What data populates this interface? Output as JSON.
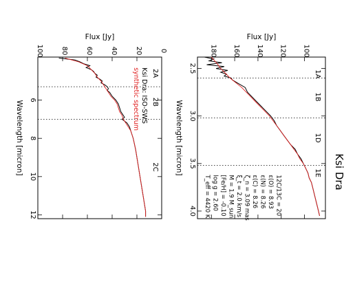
{
  "chart_data": [
    {
      "type": "line",
      "panel": "right",
      "title": "Ksi Dra",
      "xlabel": "Wavelength [micron]",
      "ylabel": "Flux [Jy]",
      "xlim": [
        2.38,
        4.08
      ],
      "ylim": [
        82,
        192
      ],
      "xticks": [
        2.5,
        3.0,
        3.5,
        4.0
      ],
      "yticks": [
        100,
        120,
        140,
        160,
        180
      ],
      "band_boundaries": [
        2.6,
        3.02,
        3.52
      ],
      "bands": [
        {
          "label": "1A",
          "x": 2.56
        },
        {
          "label": "1B",
          "x": 2.8
        },
        {
          "label": "1D",
          "x": 3.23
        },
        {
          "label": "1E",
          "x": 3.6
        }
      ],
      "parameters": [
        "T_eff = 4420 K",
        "log g = 2.60",
        "[Fe/H] = -0.10",
        "M = 1.9 M_sun",
        "ξ_t = 2.0 km/s",
        "ζ_n = 3.09 mas",
        "ε(C) = 8.26",
        "ε(N) = 8.26",
        "ε(O) = 8.93",
        "12C/13C = 20"
      ],
      "series": [
        {
          "name": "",
          "color": "#000000",
          "x": [
            2.38,
            2.4,
            2.42,
            2.44,
            2.46,
            2.48,
            2.5,
            2.52,
            2.54,
            2.56,
            2.58,
            2.6,
            2.62,
            2.65,
            2.7,
            2.75,
            2.8,
            2.85,
            2.9,
            2.95,
            3.0,
            3.05,
            3.1,
            3.15,
            3.2,
            3.25,
            3.3,
            3.35,
            3.4,
            3.45,
            3.5,
            3.55,
            3.6,
            3.65,
            3.7,
            3.75,
            3.8,
            3.85,
            3.9,
            3.95,
            4.0,
            4.05
          ],
          "y": [
            186,
            178,
            182,
            171,
            184,
            169,
            176,
            166,
            172,
            167,
            169,
            163,
            162,
            158,
            151,
            149,
            145,
            141,
            137,
            133,
            129,
            126,
            124,
            121,
            118,
            115,
            112,
            108,
            106,
            103,
            101,
            99,
            97,
            96,
            94,
            93,
            92,
            91,
            90,
            89,
            88,
            87
          ]
        },
        {
          "name": "",
          "color": "#e02020",
          "x": [
            2.38,
            2.45,
            2.5,
            2.55,
            2.6,
            2.65,
            2.7,
            2.75,
            2.8,
            2.85,
            2.9,
            2.95,
            3.0,
            3.05,
            3.1,
            3.15,
            3.2,
            3.25,
            3.3,
            3.35,
            3.4,
            3.45,
            3.5,
            3.55,
            3.6,
            3.65,
            3.7,
            3.75,
            3.8,
            3.85,
            3.9,
            3.95,
            4.0,
            4.05
          ],
          "y": [
            180,
            175,
            172,
            168,
            164,
            159,
            154,
            150,
            146,
            142,
            138,
            134,
            130,
            127,
            124,
            121,
            118,
            115,
            112,
            109,
            106,
            104,
            101,
            99,
            97,
            96,
            94,
            93,
            92,
            91,
            90,
            89,
            88,
            87
          ]
        }
      ]
    },
    {
      "type": "line",
      "panel": "left",
      "title": "",
      "xlabel": "Wavelength [micron]",
      "ylabel": "Flux [Jy]",
      "xlim": [
        3.75,
        12.2
      ],
      "ylim": [
        0,
        100
      ],
      "xticks": [
        6,
        8,
        10,
        12
      ],
      "yticks": [
        0,
        20,
        40,
        60,
        80,
        100
      ],
      "band_boundaries": [
        5.3,
        7.0
      ],
      "bands": [
        {
          "label": "2A",
          "x": 4.6
        },
        {
          "label": "2B",
          "x": 6.1
        },
        {
          "label": "2C",
          "x": 9.5
        }
      ],
      "legend": [
        {
          "label": "Ksi Dra: ISO-SWS",
          "color": "#000000"
        },
        {
          "label": "synthetic spectrum",
          "color": "#e02020"
        }
      ],
      "series": [
        {
          "name": "Ksi Dra: ISO-SWS",
          "color": "#000000",
          "x": [
            3.8,
            3.9,
            4.0,
            4.1,
            4.2,
            4.3,
            4.4,
            4.5,
            4.6,
            4.7,
            4.8,
            4.9,
            5.0,
            5.1,
            5.2,
            5.3,
            5.4,
            5.5,
            5.6,
            5.8,
            6.0,
            6.2,
            6.4,
            6.6,
            6.8,
            6.9,
            7.0,
            7.2,
            7.4,
            7.6,
            7.8,
            8.0,
            8.3,
            8.6,
            9.0,
            9.4,
            9.8,
            10.2,
            10.6,
            11.0,
            11.4,
            11.8,
            12.1
          ],
          "y": [
            83,
            70,
            66,
            63,
            58,
            61,
            57,
            55,
            54,
            52,
            53,
            50,
            48,
            49,
            46,
            44,
            43,
            44,
            42,
            40,
            37,
            35,
            34,
            33,
            31,
            30,
            32,
            28,
            26,
            25,
            24,
            23,
            22,
            21,
            20,
            19,
            18,
            17,
            16,
            15,
            14,
            13,
            13
          ]
        },
        {
          "name": "synthetic spectrum",
          "color": "#e02020",
          "x": [
            3.8,
            4.0,
            4.2,
            4.4,
            4.6,
            4.8,
            5.0,
            5.2,
            5.4,
            5.6,
            5.8,
            6.0,
            6.2,
            6.4,
            6.6,
            6.8,
            7.0,
            7.2,
            7.4,
            7.6,
            7.8,
            8.0,
            8.3,
            8.6,
            9.0,
            9.4,
            9.8,
            10.2,
            10.6,
            11.0,
            11.4,
            11.8,
            12.1
          ],
          "y": [
            78,
            67,
            60,
            57,
            54,
            52,
            49,
            47,
            45,
            43,
            41,
            38,
            36,
            35,
            34,
            32,
            31,
            29,
            27,
            25,
            24,
            23,
            22,
            21,
            20,
            19,
            18,
            17,
            16,
            15,
            14,
            13,
            13
          ]
        }
      ]
    }
  ]
}
